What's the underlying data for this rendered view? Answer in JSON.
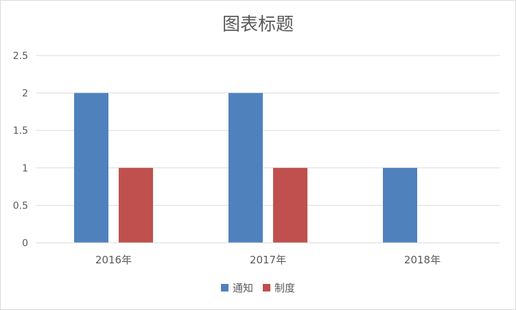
{
  "chart_data": {
    "type": "bar",
    "title": "图表标题",
    "categories": [
      "2016年",
      "2017年",
      "2018年"
    ],
    "series": [
      {
        "name": "通知",
        "values": [
          2,
          2,
          1
        ],
        "color": "#4f81bd"
      },
      {
        "name": "制度",
        "values": [
          1,
          1,
          0
        ],
        "color": "#c0504d"
      }
    ],
    "ylim": [
      0,
      2.5
    ],
    "yticks": [
      "0",
      "0.5",
      "1",
      "1.5",
      "2",
      "2.5"
    ],
    "grid": true,
    "legend_position": "bottom"
  }
}
